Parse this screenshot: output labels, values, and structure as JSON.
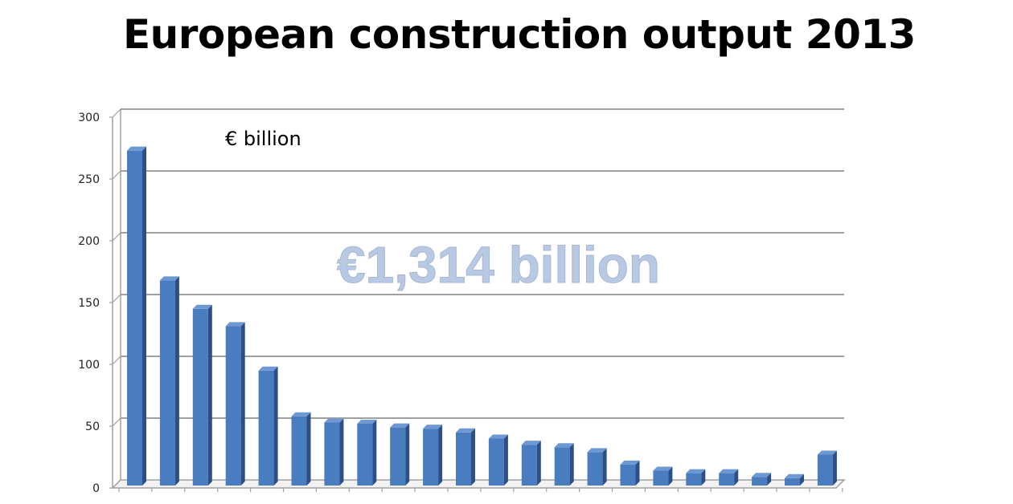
{
  "chart_data": {
    "type": "bar",
    "title": "European construction output 2013",
    "unit_label": "€ billion",
    "annotation": "€1,314 billion",
    "ylim": [
      0,
      300
    ],
    "yticks": [
      0,
      50,
      100,
      150,
      200,
      250,
      300
    ],
    "grid": true,
    "bar_style": "3d-column",
    "values": [
      271,
      166,
      143,
      129,
      93,
      56,
      51,
      50,
      47,
      46,
      43,
      38,
      33,
      31,
      27,
      17,
      12,
      10,
      10,
      7,
      6,
      25
    ],
    "colors": {
      "bar_front": "#4a7cc0",
      "bar_side": "#2b4f86",
      "bar_top": "#6d98d4",
      "grid": "#a0a0a0",
      "annotation": "#b8c9e3"
    }
  }
}
